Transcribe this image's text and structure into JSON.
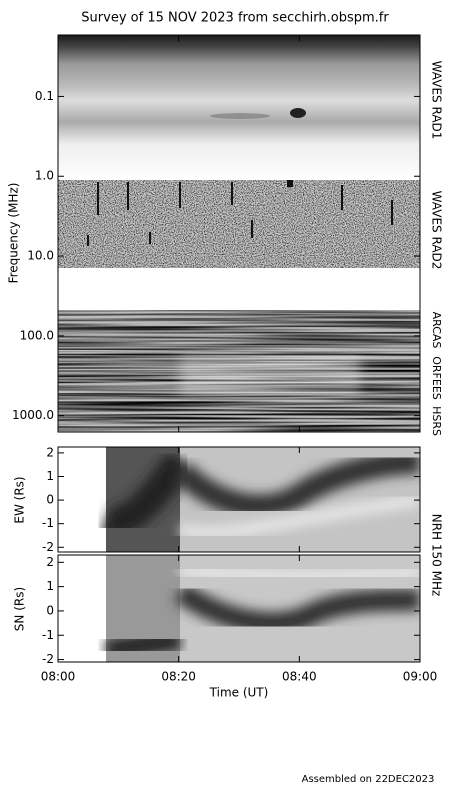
{
  "chart_data": [
    {
      "type": "spectrogram",
      "title": "Survey of 15 NOV 2023 from secchirh.obspm.fr",
      "ylabel": "Frequency (MHz)",
      "yscale": "log",
      "y_inverted": true,
      "ylim": [
        0.017,
        1600
      ],
      "yticks": [
        0.1,
        {
          "value": 1,
          "label": "1.0"
        },
        {
          "value": 10,
          "label": "10.0"
        },
        {
          "value": 100,
          "label": "100.0"
        },
        {
          "value": 1000,
          "label": "1000.0"
        }
      ],
      "bands": [
        "WAVES RAD1",
        "WAVES RAD2",
        "ARCAS",
        "ORFEES",
        "HSRS"
      ]
    },
    {
      "type": "heatmap",
      "ylabel": "EW (Rs)",
      "ylim": [
        -2.2,
        2.25
      ],
      "yticks": [
        -2,
        -1,
        0,
        1,
        2
      ],
      "instrument": "NRH 150 MHz"
    },
    {
      "type": "heatmap",
      "ylabel": "SN (Rs)",
      "ylim": [
        -2.1,
        2.3
      ],
      "yticks": [
        -2,
        -1,
        0,
        1,
        2
      ],
      "xticks": [
        "08:00",
        "08:20",
        "08:40",
        "09:00"
      ],
      "xlabel": "Time (UT)"
    }
  ],
  "footer": "Assembled on 22DEC2023"
}
